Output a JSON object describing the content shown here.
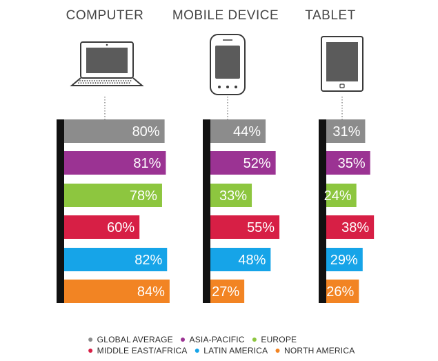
{
  "chart_data": {
    "type": "bar",
    "orientation": "horizontal",
    "unit": "%",
    "groups": [
      {
        "name": "COMPUTER",
        "icon": "laptop-icon"
      },
      {
        "name": "MOBILE DEVICE",
        "icon": "smartphone-icon"
      },
      {
        "name": "TABLET",
        "icon": "tablet-icon"
      }
    ],
    "series": [
      {
        "name": "GLOBAL AVERAGE",
        "color": "#8c8c8c",
        "values": [
          80,
          44,
          31
        ]
      },
      {
        "name": "ASIA-PACIFIC",
        "color": "#9b3393",
        "values": [
          81,
          52,
          35
        ]
      },
      {
        "name": "EUROPE",
        "color": "#8dc63f",
        "values": [
          78,
          33,
          24
        ]
      },
      {
        "name": "MIDDLE EAST/AFRICA",
        "color": "#d71f45",
        "values": [
          60,
          55,
          38
        ]
      },
      {
        "name": "LATIN AMERICA",
        "color": "#16a4e8",
        "values": [
          82,
          48,
          29
        ]
      },
      {
        "name": "NORTH AMERICA",
        "color": "#f28423",
        "values": [
          84,
          27,
          26
        ]
      }
    ],
    "value_labels": [
      [
        "80%",
        "44%",
        "31%"
      ],
      [
        "81%",
        "52%",
        "35%"
      ],
      [
        "78%",
        "33%",
        "24%"
      ],
      [
        "60%",
        "55%",
        "38%"
      ],
      [
        "82%",
        "48%",
        "29%"
      ],
      [
        "84%",
        "27%",
        "26%"
      ]
    ],
    "legend_position": "bottom",
    "grid": false
  },
  "legend_rows": [
    [
      "GLOBAL AVERAGE",
      "ASIA-PACIFIC",
      "EUROPE"
    ],
    [
      "MIDDLE EAST/AFRICA",
      "LATIN AMERICA",
      "NORTH AMERICA"
    ]
  ]
}
